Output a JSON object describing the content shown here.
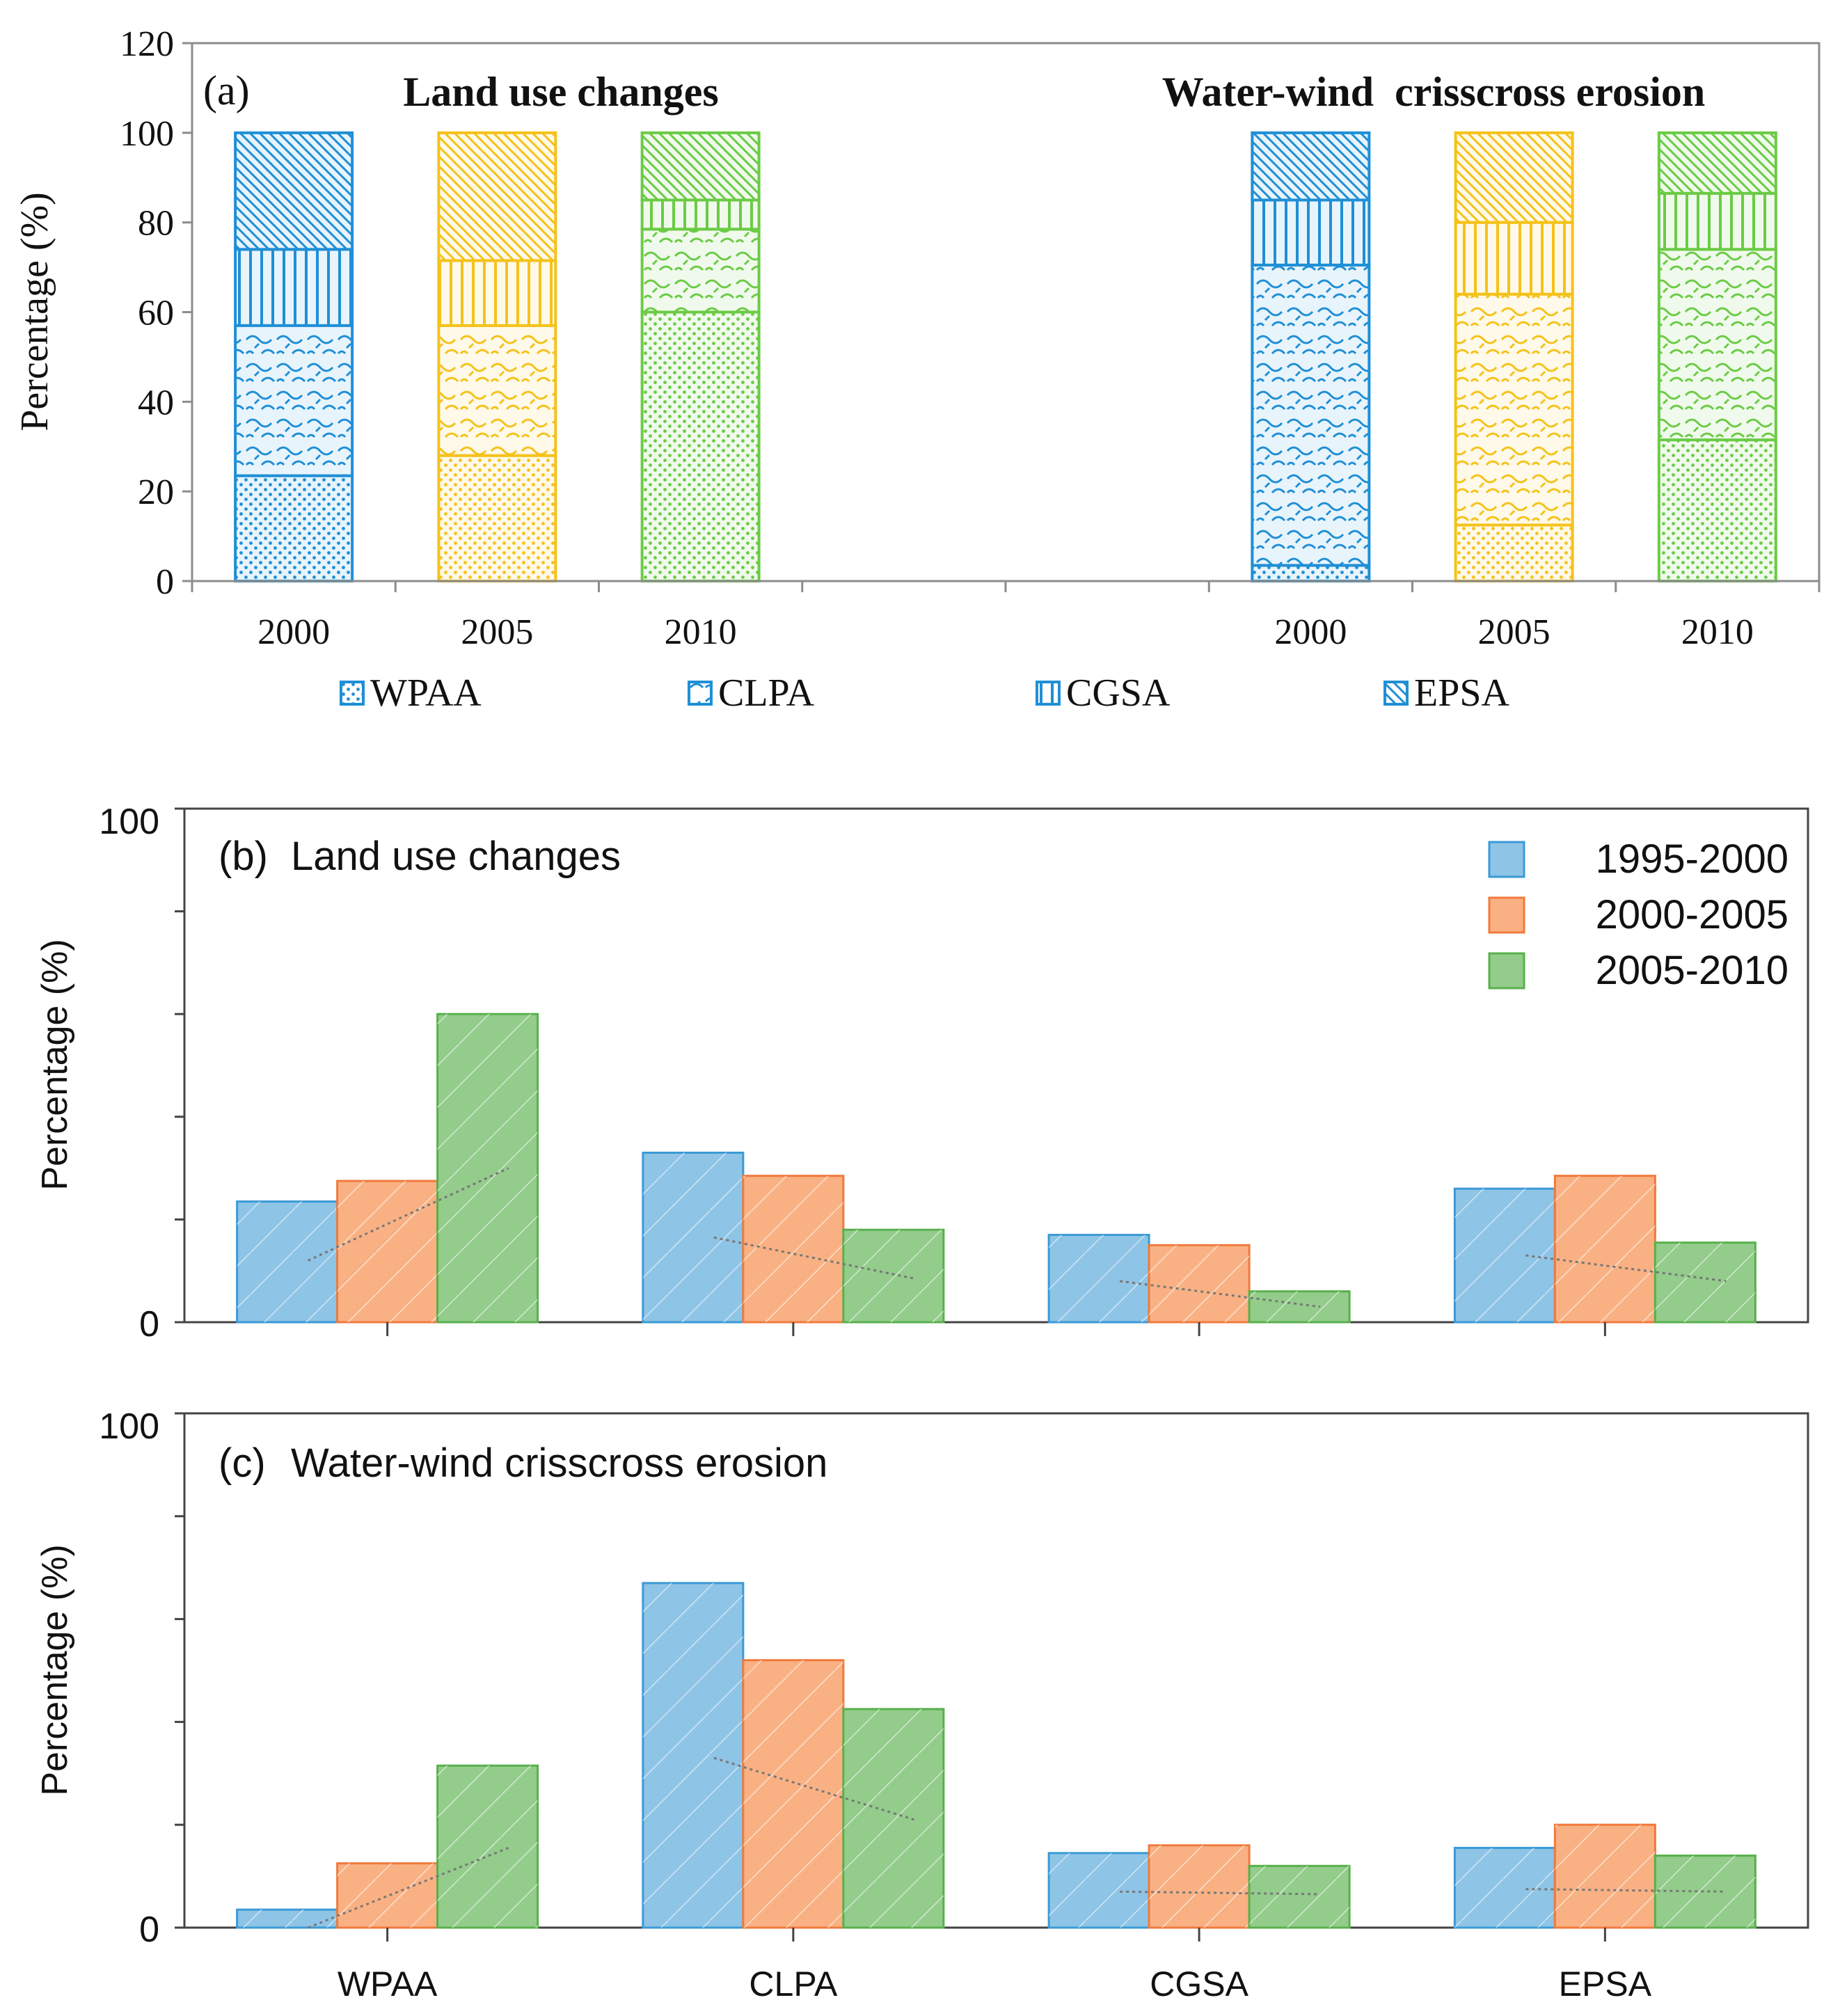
{
  "chart_data": [
    {
      "type": "bar",
      "stacked": true,
      "panel_label": "(a)",
      "ylabel": "Percentage (%)",
      "ylim": [
        0,
        120
      ],
      "yticks": [
        0,
        20,
        40,
        60,
        80,
        100,
        120
      ],
      "legend": [
        "WPAA",
        "CLPA",
        "CGSA",
        "EPSA"
      ],
      "groups": [
        {
          "title": "Land use changes",
          "bars": [
            {
              "label": "2000",
              "color": "#1f8fd6",
              "stack": [
                23.5,
                33.5,
                17,
                26
              ]
            },
            {
              "label": "2005",
              "color": "#f5c21a",
              "stack": [
                28,
                29,
                14.5,
                28.5
              ]
            },
            {
              "label": "2010",
              "color": "#6bcb45",
              "stack": [
                60,
                18.5,
                6.5,
                15
              ]
            }
          ]
        },
        {
          "title": "Water-wind  crisscross erosion",
          "bars": [
            {
              "label": "2000",
              "color": "#1f8fd6",
              "stack": [
                3.5,
                67,
                14.5,
                15
              ]
            },
            {
              "label": "2005",
              "color": "#f5c21a",
              "stack": [
                12.5,
                51.5,
                16,
                20
              ]
            },
            {
              "label": "2010",
              "color": "#6bcb45",
              "stack": [
                31.5,
                42.5,
                12.5,
                13.5
              ]
            }
          ]
        }
      ]
    },
    {
      "type": "bar",
      "panel_label": "(b)",
      "title": "Land use changes",
      "ylabel": "Percentage (%)",
      "ylim": [
        0,
        100
      ],
      "yticks_labeled": [
        0,
        100
      ],
      "legend_position": "top-right",
      "categories": [
        "WPAA",
        "CLPA",
        "CGSA",
        "EPSA"
      ],
      "series": [
        {
          "name": "1995-2000",
          "color": "#8ec4e6",
          "values": [
            23.5,
            33,
            17,
            26
          ]
        },
        {
          "name": "2000-2005",
          "color": "#f9b183",
          "values": [
            27.5,
            28.5,
            15,
            28.5
          ]
        },
        {
          "name": "2005-2010",
          "color": "#93cc8b",
          "values": [
            60,
            18,
            6,
            15.5
          ]
        }
      ],
      "trend_lines": [
        [
          12,
          30
        ],
        [
          16.5,
          8.5
        ],
        [
          8,
          3
        ],
        [
          13,
          8
        ]
      ]
    },
    {
      "type": "bar",
      "panel_label": "(c)",
      "title": "Water-wind crisscross erosion",
      "ylabel": "Percentage (%)",
      "ylim": [
        0,
        100
      ],
      "yticks_labeled": [
        0,
        100
      ],
      "categories": [
        "WPAA",
        "CLPA",
        "CGSA",
        "EPSA"
      ],
      "series": [
        {
          "name": "1995-2000",
          "color": "#8ec4e6",
          "values": [
            3.5,
            67,
            14.5,
            15.5
          ]
        },
        {
          "name": "2000-2005",
          "color": "#f9b183",
          "values": [
            12.5,
            52,
            16,
            20
          ]
        },
        {
          "name": "2005-2010",
          "color": "#93cc8b",
          "values": [
            31.5,
            42.5,
            12,
            14
          ]
        }
      ],
      "trend_lines": [
        [
          0,
          15.5
        ],
        [
          33,
          21
        ],
        [
          7,
          6.5
        ],
        [
          7.5,
          7
        ]
      ]
    }
  ]
}
